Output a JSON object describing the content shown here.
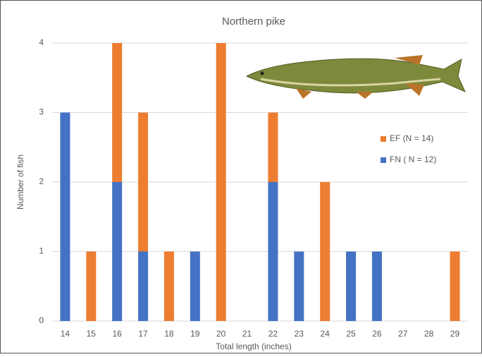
{
  "chart_data": {
    "type": "stacked_bar",
    "title": "Northern pike",
    "x_label": "Total length (inches)",
    "y_label": "Number of fish",
    "categories": [
      "14",
      "15",
      "16",
      "17",
      "18",
      "19",
      "20",
      "21",
      "22",
      "23",
      "24",
      "25",
      "26",
      "27",
      "28",
      "29"
    ],
    "series": [
      {
        "name": "EF (N = 14)",
        "color": "#ed7d31",
        "values": [
          0,
          1,
          2,
          2,
          1,
          0,
          4,
          0,
          1,
          0,
          2,
          0,
          0,
          0,
          0,
          1
        ]
      },
      {
        "name": "FN ( N = 12)",
        "color": "#4472c4",
        "values": [
          3,
          0,
          2,
          1,
          0,
          1,
          0,
          0,
          2,
          1,
          0,
          1,
          1,
          0,
          0,
          0
        ]
      }
    ],
    "ylim": [
      0,
      4
    ],
    "yticks": [
      0,
      1,
      2,
      3,
      4
    ],
    "grid": true,
    "legend": "right"
  }
}
